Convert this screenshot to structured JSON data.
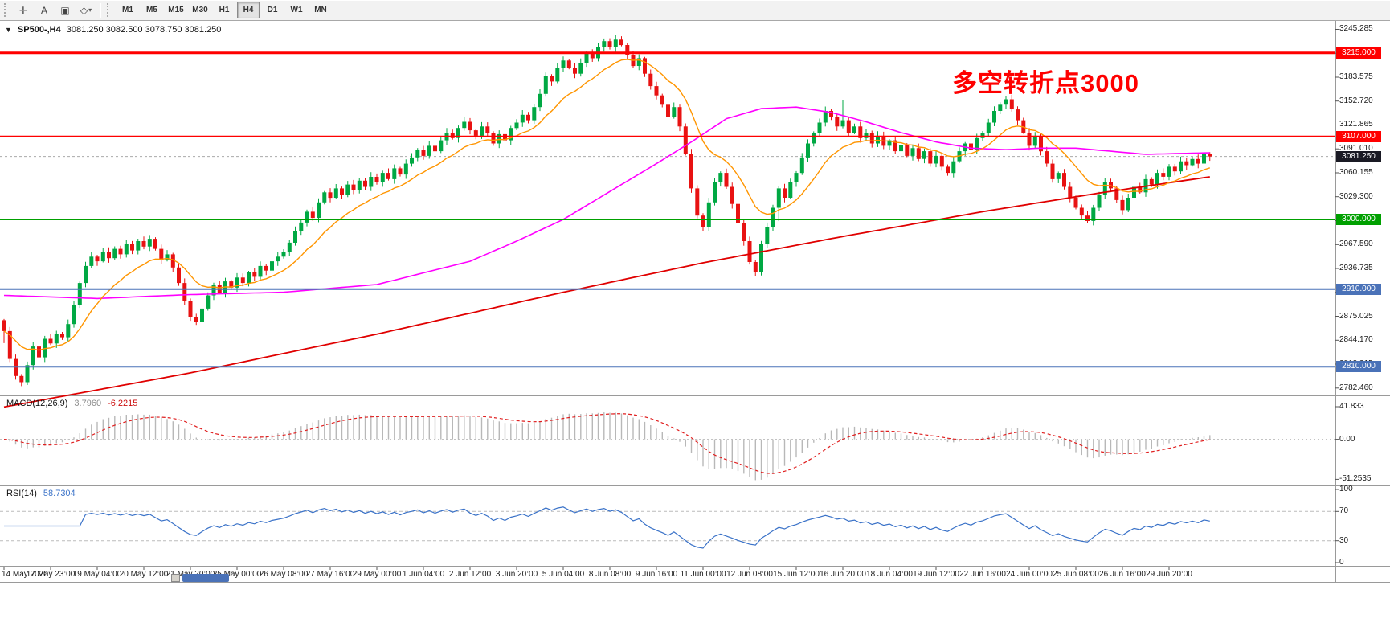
{
  "toolbar": {
    "tools": [
      {
        "name": "crosshair-tool",
        "glyph": "✛"
      },
      {
        "name": "text-label-tool",
        "glyph": "A"
      },
      {
        "name": "text-frame-tool",
        "glyph": "▣"
      },
      {
        "name": "shapes-dropdown",
        "glyph": "◇",
        "dropdown": true
      }
    ],
    "dropdown_glyph": "▾",
    "timeframes": [
      "M1",
      "M5",
      "M15",
      "M30",
      "H1",
      "H4",
      "D1",
      "W1",
      "MN"
    ],
    "active_timeframe": "H4"
  },
  "chart": {
    "dropdown_glyph": "▼",
    "title_symbol": "SP500-,H4",
    "title_ohlc": "3081.250 3082.500 3078.750 3081.250",
    "annotation_text": "多空转折点3000",
    "annotation_color": "#FF0000",
    "hlines": [
      {
        "price": 3215.0,
        "label": "3215.000",
        "color": "#FF0000",
        "width": 3
      },
      {
        "price": 3107.0,
        "label": "3107.000",
        "color": "#FF0000",
        "width": 2
      },
      {
        "price": 3000.0,
        "label": "3000.000",
        "color": "#00A000",
        "width": 2
      },
      {
        "price": 2910.0,
        "label": "2910.000",
        "color": "#4A72B8",
        "width": 2
      },
      {
        "price": 2810.0,
        "label": "2810.000",
        "color": "#4A72B8",
        "width": 2
      }
    ],
    "current_price": {
      "value": 3081.25,
      "label": "3081.250",
      "badge_color": "#1A1A24"
    },
    "price_axis_labels": [
      "3245.285",
      "3214.430",
      "3183.575",
      "3152.720",
      "3121.865",
      "3091.010",
      "3060.155",
      "3029.300",
      "2998.445",
      "2967.590",
      "2936.735",
      "2905.880",
      "2875.025",
      "2844.170",
      "2813.315",
      "2782.460"
    ],
    "colors": {
      "bull": "#00A843",
      "bear": "#E81212",
      "ma_fast": "#FF9500",
      "ma_mid": "#FF00FF",
      "ma_slow": "#E00000"
    }
  },
  "macd": {
    "label": "MACD(12,26,9)",
    "main_value": "3.7960",
    "signal_value": "-6.2215",
    "axis_labels": [
      {
        "value": 41.833,
        "text": "41.833"
      },
      {
        "value": 0,
        "text": "0.00"
      },
      {
        "value": -51.2535,
        "text": "-51.2535"
      }
    ],
    "histogram_color": "#B8B8B8",
    "signal_color": "#E02020"
  },
  "rsi": {
    "label": "RSI(14)",
    "value": "58.7304",
    "axis_labels": [
      {
        "value": 100,
        "text": "100"
      },
      {
        "value": 70,
        "text": "70"
      },
      {
        "value": 30,
        "text": "30"
      },
      {
        "value": 0,
        "text": "0"
      }
    ],
    "levels": [
      70,
      30
    ],
    "line_color": "#3A72C8"
  },
  "chart_data": {
    "type": "candlestick",
    "symbol": "SP500-",
    "timeframe": "H4",
    "y_range": [
      2776,
      3252
    ],
    "first_open": 2870,
    "closes": [
      2856,
      2820,
      2798,
      2790,
      2812,
      2836,
      2822,
      2846,
      2840,
      2852,
      2848,
      2865,
      2890,
      2918,
      2940,
      2952,
      2946,
      2958,
      2950,
      2962,
      2955,
      2968,
      2960,
      2972,
      2965,
      2975,
      2962,
      2948,
      2955,
      2938,
      2918,
      2895,
      2874,
      2868,
      2885,
      2902,
      2915,
      2905,
      2920,
      2912,
      2925,
      2918,
      2932,
      2926,
      2940,
      2934,
      2946,
      2952,
      2958,
      2970,
      2985,
      2996,
      3010,
      3002,
      3022,
      3035,
      3028,
      3040,
      3032,
      3045,
      3038,
      3050,
      3042,
      3055,
      3048,
      3060,
      3052,
      3066,
      3058,
      3072,
      3080,
      3090,
      3082,
      3095,
      3088,
      3102,
      3112,
      3105,
      3118,
      3126,
      3115,
      3108,
      3120,
      3112,
      3098,
      3110,
      3102,
      3118,
      3125,
      3135,
      3128,
      3145,
      3162,
      3185,
      3178,
      3196,
      3205,
      3196,
      3188,
      3202,
      3215,
      3208,
      3222,
      3230,
      3222,
      3232,
      3225,
      3212,
      3198,
      3208,
      3188,
      3172,
      3160,
      3148,
      3132,
      3145,
      3120,
      3085,
      3040,
      3005,
      2990,
      3022,
      3048,
      3060,
      3042,
      3020,
      2995,
      2972,
      2945,
      2932,
      2968,
      2990,
      3015,
      3040,
      3028,
      3048,
      3060,
      3080,
      3098,
      3112,
      3125,
      3140,
      3132,
      3120,
      3128,
      3112,
      3120,
      3105,
      3112,
      3098,
      3108,
      3095,
      3102,
      3088,
      3096,
      3082,
      3092,
      3078,
      3088,
      3072,
      3082,
      3068,
      3060,
      3075,
      3088,
      3098,
      3090,
      3105,
      3112,
      3125,
      3140,
      3148,
      3155,
      3142,
      3128,
      3112,
      3095,
      3108,
      3088,
      3072,
      3052,
      3060,
      3042,
      3028,
      3015,
      3005,
      2998,
      3015,
      3032,
      3048,
      3040,
      3025,
      3012,
      3028,
      3042,
      3035,
      3052,
      3045,
      3060,
      3055,
      3068,
      3062,
      3075,
      3070,
      3078,
      3072,
      3085,
      3081.25
    ],
    "spikes": [
      {
        "i": 0,
        "down": 10
      },
      {
        "i": 133,
        "down": 14
      },
      {
        "i": 144,
        "up": 20
      }
    ],
    "ma_fast_period": 13,
    "ma_mid_anchors": [
      [
        0,
        2902
      ],
      [
        16,
        2898
      ],
      [
        32,
        2903
      ],
      [
        48,
        2906
      ],
      [
        64,
        2916
      ],
      [
        80,
        2946
      ],
      [
        88,
        2972
      ],
      [
        96,
        3000
      ],
      [
        104,
        3036
      ],
      [
        112,
        3072
      ],
      [
        118,
        3100
      ],
      [
        124,
        3130
      ],
      [
        130,
        3143
      ],
      [
        136,
        3145
      ],
      [
        142,
        3138
      ],
      [
        148,
        3126
      ],
      [
        154,
        3112
      ],
      [
        160,
        3100
      ],
      [
        166,
        3092
      ],
      [
        172,
        3090
      ],
      [
        178,
        3092
      ],
      [
        184,
        3092
      ],
      [
        190,
        3088
      ],
      [
        196,
        3084
      ],
      [
        207,
        3086
      ]
    ],
    "ma_slow_anchors": [
      [
        0,
        2758
      ],
      [
        32,
        2802
      ],
      [
        64,
        2852
      ],
      [
        96,
        2906
      ],
      [
        120,
        2944
      ],
      [
        144,
        2978
      ],
      [
        168,
        3010
      ],
      [
        188,
        3034
      ],
      [
        207,
        3055
      ]
    ],
    "x_labels": [
      "14 May 2020",
      "17 May 23:00",
      "19 May 04:00",
      "20 May 12:00",
      "21 May 20:00",
      "25 May 00:00",
      "26 May 08:00",
      "27 May 16:00",
      "29 May 00:00",
      "1 Jun 04:00",
      "2 Jun 12:00",
      "3 Jun 20:00",
      "5 Jun 04:00",
      "8 Jun 08:00",
      "9 Jun 16:00",
      "11 Jun 00:00",
      "12 Jun 08:00",
      "15 Jun 12:00",
      "16 Jun 20:00",
      "18 Jun 04:00",
      "19 Jun 12:00",
      "22 Jun 16:00",
      "24 Jun 00:00",
      "25 Jun 08:00",
      "26 Jun 16:00",
      "29 Jun 20:00"
    ],
    "bars_per_label": 8
  }
}
